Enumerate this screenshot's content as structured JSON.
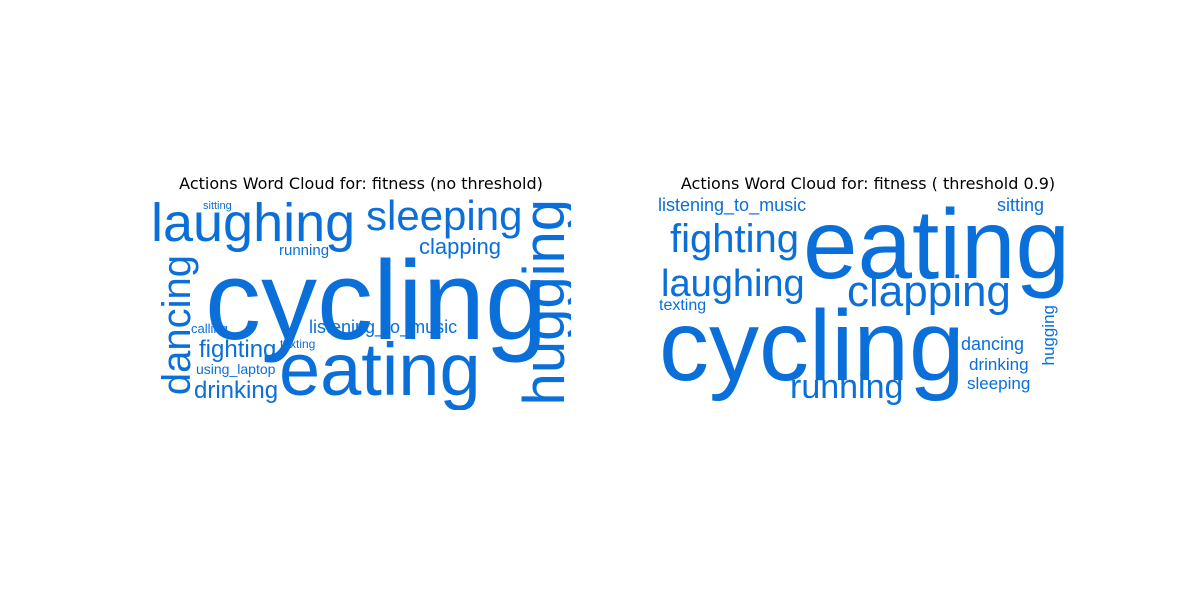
{
  "theme": {
    "word_color": "#0a6fd8",
    "background": "#ffffff"
  },
  "left_panel": {
    "title": "Actions Word Cloud for: fitness (no threshold)",
    "words": [
      "cycling",
      "eating",
      "hugging",
      "laughing",
      "sleeping",
      "dancing",
      "clapping",
      "listening_to_music",
      "fighting",
      "drinking",
      "running",
      "calling",
      "texting",
      "using_laptop",
      "sitting"
    ]
  },
  "right_panel": {
    "title": "Actions Word Cloud for: fitness ( threshold 0.9)",
    "words": [
      "eating",
      "cycling",
      "clapping",
      "fighting",
      "laughing",
      "running",
      "listening_to_music",
      "sitting",
      "dancing",
      "drinking",
      "sleeping",
      "hugging",
      "texting"
    ]
  }
}
